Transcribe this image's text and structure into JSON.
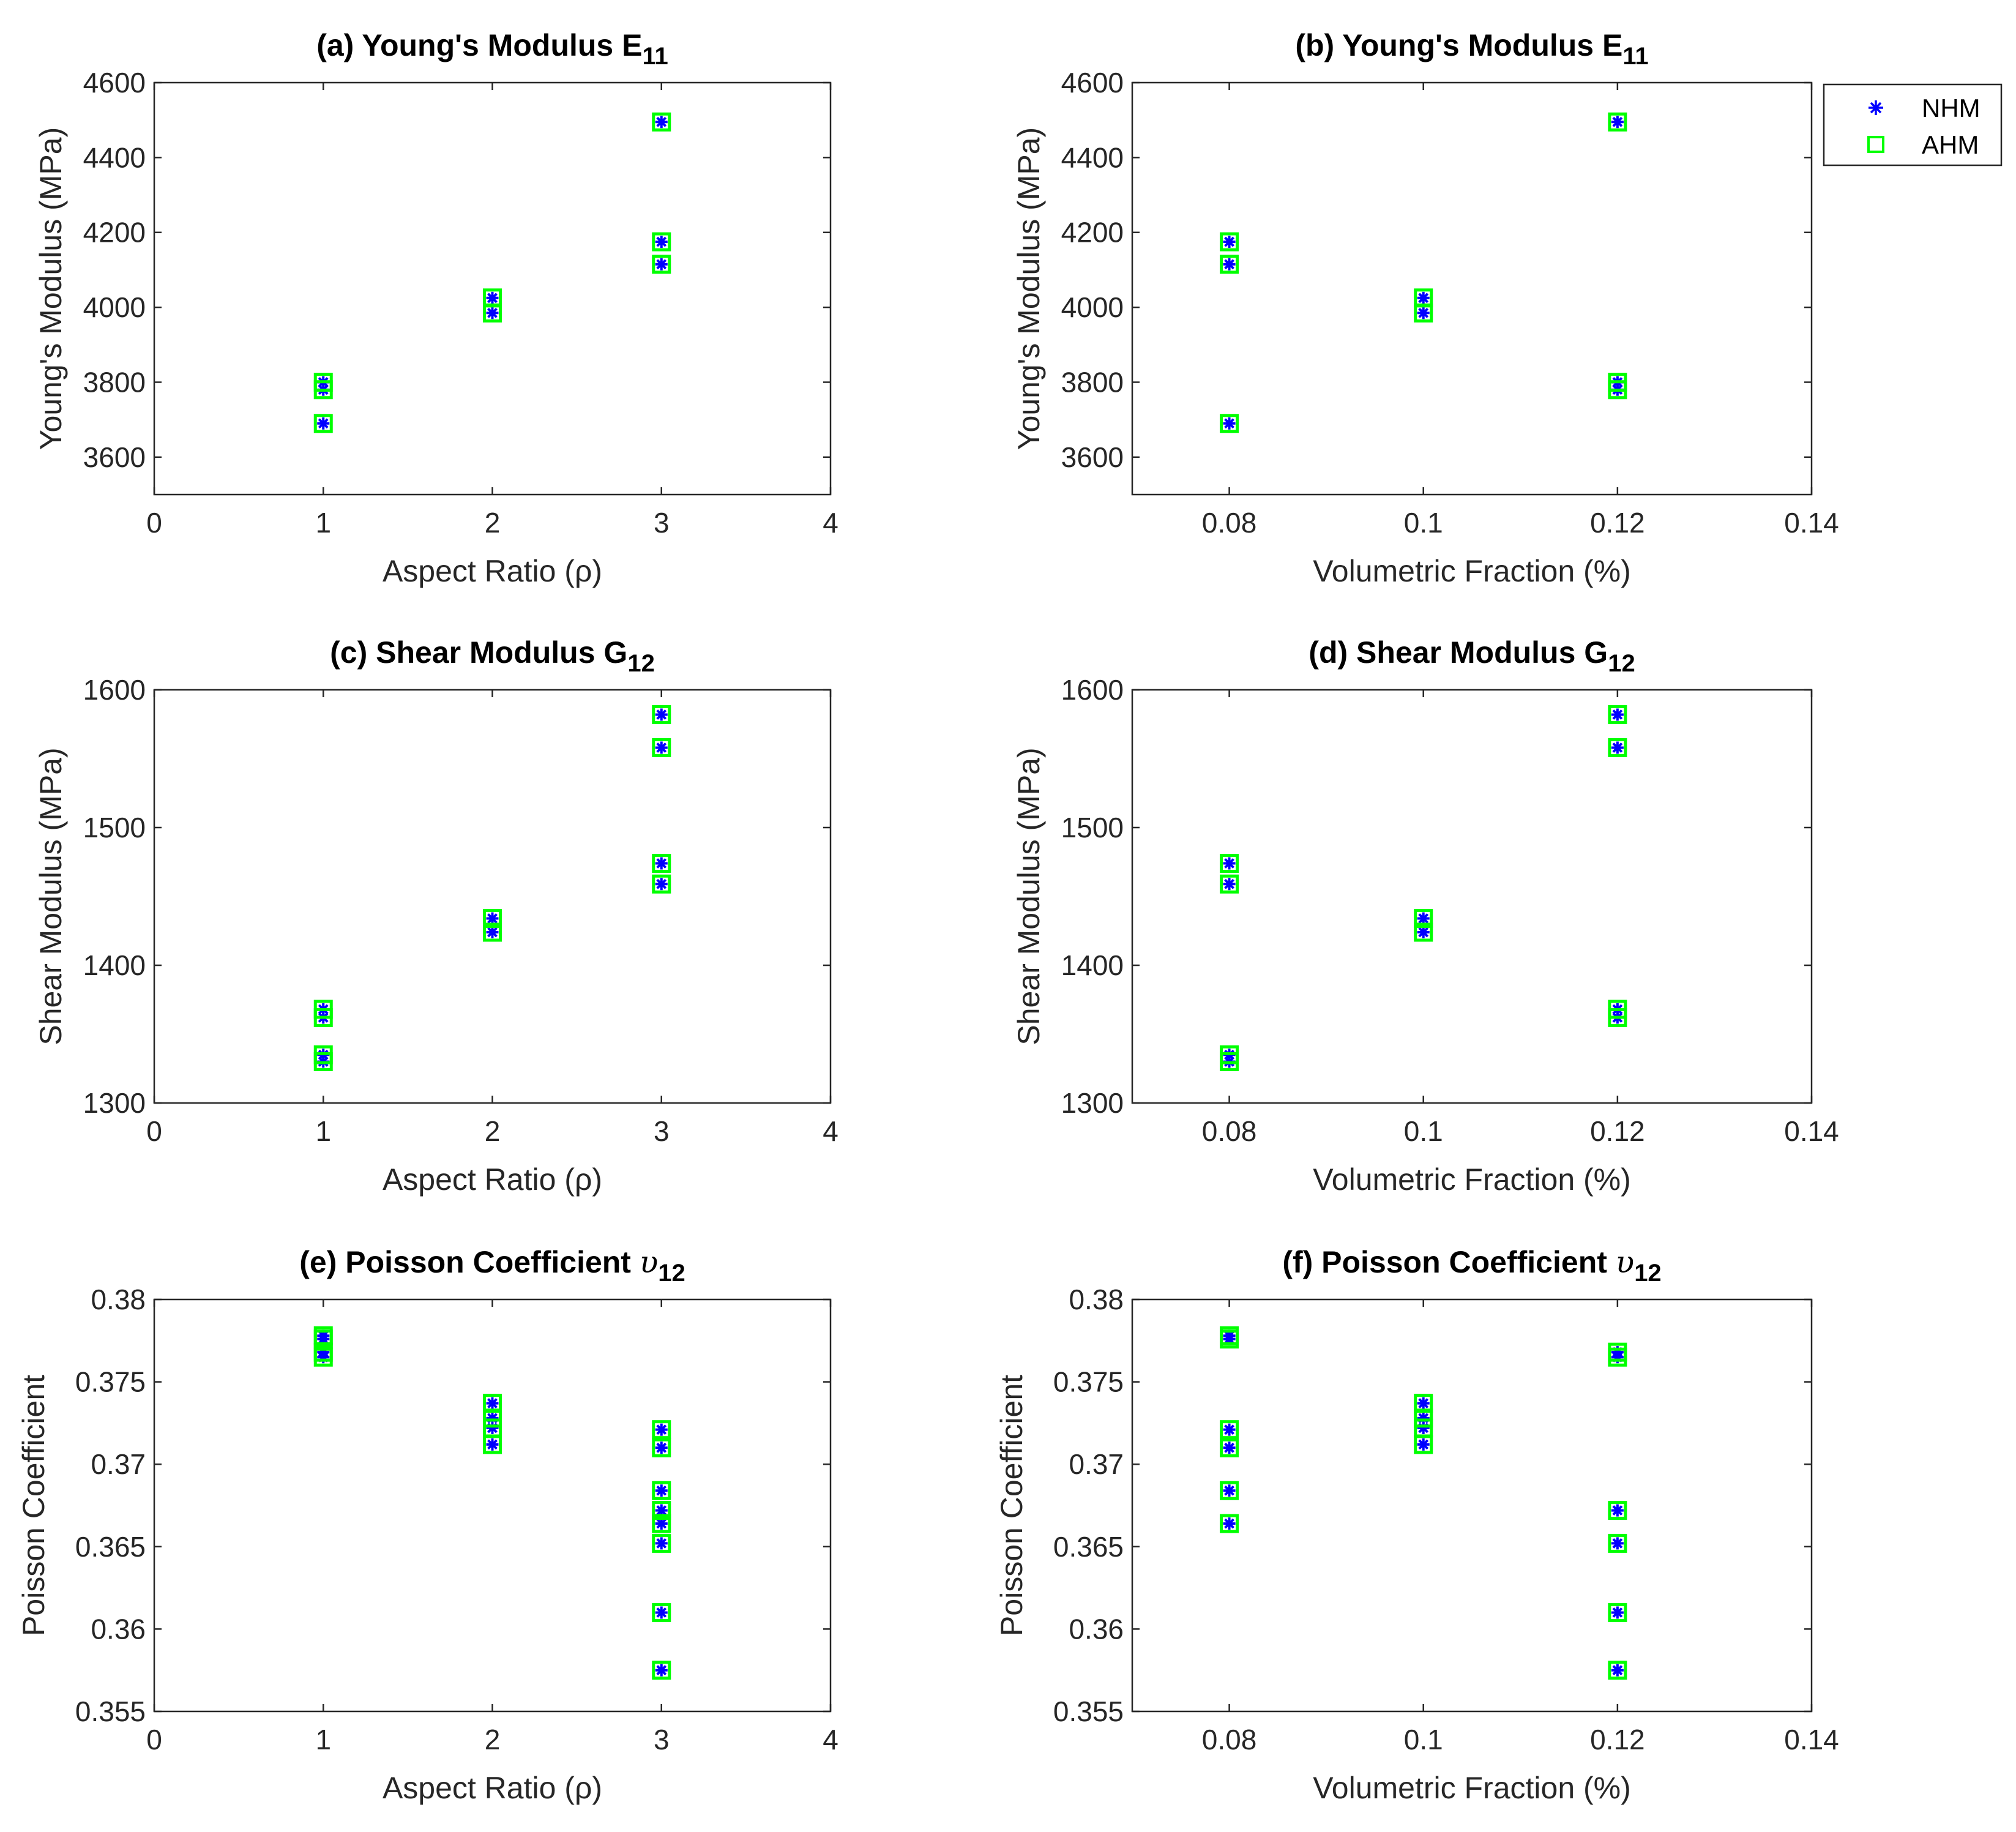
{
  "colors": {
    "nhm": "#0000ff",
    "ahm": "#00ff00",
    "axis": "#262626",
    "background": "#ffffff"
  },
  "legend": {
    "entries": [
      {
        "label": "NHM",
        "marker": "asterisk",
        "color": "#0000ff"
      },
      {
        "label": "AHM",
        "marker": "square",
        "color": "#00ff00"
      }
    ],
    "location": "top-right outside"
  },
  "chart_data": [
    {
      "panel": "a",
      "type": "scatter",
      "title_prefix": "(a)",
      "title_main": "Young's Modulus E",
      "title_sub": "11",
      "xlabel": "Aspect Ratio (ρ)",
      "ylabel": "Young's Modulus (MPa)",
      "xlim": [
        0,
        4
      ],
      "ylim": [
        3500,
        4600
      ],
      "xticks": [
        0,
        1,
        2,
        3,
        4
      ],
      "xtick_labels": [
        "0",
        "1",
        "2",
        "3",
        "4"
      ],
      "yticks": [
        3600,
        3800,
        4000,
        4200,
        4400,
        4600
      ],
      "ytick_labels": [
        "3600",
        "3800",
        "4000",
        "4200",
        "4400",
        "4600"
      ],
      "series": [
        {
          "name": "NHM",
          "points": [
            [
              1,
              3690
            ],
            [
              1,
              3780
            ],
            [
              1,
              3800
            ],
            [
              2,
              3985
            ],
            [
              2,
              4025
            ],
            [
              3,
              4115
            ],
            [
              3,
              4175
            ],
            [
              3,
              4495
            ]
          ]
        },
        {
          "name": "AHM",
          "points": [
            [
              1,
              3690
            ],
            [
              1,
              3780
            ],
            [
              1,
              3800
            ],
            [
              2,
              3985
            ],
            [
              2,
              4025
            ],
            [
              3,
              4115
            ],
            [
              3,
              4175
            ],
            [
              3,
              4495
            ]
          ]
        }
      ]
    },
    {
      "panel": "b",
      "type": "scatter",
      "title_prefix": "(b)",
      "title_main": "Young's Modulus E",
      "title_sub": "11",
      "xlabel": "Volumetric Fraction (%)",
      "ylabel": "Young's Modulus (MPa)",
      "xlim": [
        0.07,
        0.14
      ],
      "ylim": [
        3500,
        4600
      ],
      "xticks": [
        0.08,
        0.1,
        0.12,
        0.14
      ],
      "xtick_labels": [
        "0.08",
        "0.1",
        "0.12",
        "0.14"
      ],
      "yticks": [
        3600,
        3800,
        4000,
        4200,
        4400,
        4600
      ],
      "ytick_labels": [
        "3600",
        "3800",
        "4000",
        "4200",
        "4400",
        "4600"
      ],
      "series": [
        {
          "name": "NHM",
          "points": [
            [
              0.08,
              3690
            ],
            [
              0.08,
              4115
            ],
            [
              0.08,
              4175
            ],
            [
              0.1,
              3985
            ],
            [
              0.1,
              4025
            ],
            [
              0.12,
              3780
            ],
            [
              0.12,
              3800
            ],
            [
              0.12,
              4495
            ]
          ]
        },
        {
          "name": "AHM",
          "points": [
            [
              0.08,
              3690
            ],
            [
              0.08,
              4115
            ],
            [
              0.08,
              4175
            ],
            [
              0.1,
              3985
            ],
            [
              0.1,
              4025
            ],
            [
              0.12,
              3780
            ],
            [
              0.12,
              3800
            ],
            [
              0.12,
              4495
            ]
          ]
        }
      ]
    },
    {
      "panel": "c",
      "type": "scatter",
      "title_prefix": "(c)",
      "title_main": "Shear Modulus G",
      "title_sub": "12",
      "xlabel": "Aspect Ratio (ρ)",
      "ylabel": "Shear Modulus (MPa)",
      "xlim": [
        0,
        4
      ],
      "ylim": [
        1300,
        1600
      ],
      "xticks": [
        0,
        1,
        2,
        3,
        4
      ],
      "xtick_labels": [
        "0",
        "1",
        "2",
        "3",
        "4"
      ],
      "yticks": [
        1300,
        1400,
        1500,
        1600
      ],
      "ytick_labels": [
        "1300",
        "1400",
        "1500",
        "1600"
      ],
      "series": [
        {
          "name": "NHM",
          "points": [
            [
              1,
              1330
            ],
            [
              1,
              1335
            ],
            [
              1,
              1362
            ],
            [
              1,
              1368
            ],
            [
              2,
              1424
            ],
            [
              2,
              1434
            ],
            [
              3,
              1459
            ],
            [
              3,
              1474
            ],
            [
              3,
              1558
            ],
            [
              3,
              1582
            ]
          ]
        },
        {
          "name": "AHM",
          "points": [
            [
              1,
              1330
            ],
            [
              1,
              1335
            ],
            [
              1,
              1362
            ],
            [
              1,
              1368
            ],
            [
              2,
              1424
            ],
            [
              2,
              1434
            ],
            [
              3,
              1459
            ],
            [
              3,
              1474
            ],
            [
              3,
              1558
            ],
            [
              3,
              1582
            ]
          ]
        }
      ]
    },
    {
      "panel": "d",
      "type": "scatter",
      "title_prefix": "(d)",
      "title_main": "Shear Modulus G",
      "title_sub": "12",
      "xlabel": "Volumetric Fraction (%)",
      "ylabel": "Shear Modulus (MPa)",
      "xlim": [
        0.07,
        0.14
      ],
      "ylim": [
        1300,
        1600
      ],
      "xticks": [
        0.08,
        0.1,
        0.12,
        0.14
      ],
      "xtick_labels": [
        "0.08",
        "0.1",
        "0.12",
        "0.14"
      ],
      "yticks": [
        1300,
        1400,
        1500,
        1600
      ],
      "ytick_labels": [
        "1300",
        "1400",
        "1500",
        "1600"
      ],
      "series": [
        {
          "name": "NHM",
          "points": [
            [
              0.08,
              1330
            ],
            [
              0.08,
              1335
            ],
            [
              0.08,
              1459
            ],
            [
              0.08,
              1474
            ],
            [
              0.1,
              1424
            ],
            [
              0.1,
              1434
            ],
            [
              0.12,
              1362
            ],
            [
              0.12,
              1368
            ],
            [
              0.12,
              1558
            ],
            [
              0.12,
              1582
            ]
          ]
        },
        {
          "name": "AHM",
          "points": [
            [
              0.08,
              1330
            ],
            [
              0.08,
              1335
            ],
            [
              0.08,
              1459
            ],
            [
              0.08,
              1474
            ],
            [
              0.1,
              1424
            ],
            [
              0.1,
              1434
            ],
            [
              0.12,
              1362
            ],
            [
              0.12,
              1368
            ],
            [
              0.12,
              1558
            ],
            [
              0.12,
              1582
            ]
          ]
        }
      ]
    },
    {
      "panel": "e",
      "type": "scatter",
      "title_prefix": "(e)",
      "title_main": "Poisson Coefficient ",
      "title_symbol": "υ",
      "title_sub": "12",
      "xlabel": "Aspect Ratio (ρ)",
      "ylabel": "Poisson Coefficient",
      "xlim": [
        0,
        4
      ],
      "ylim": [
        0.355,
        0.38
      ],
      "xticks": [
        0,
        1,
        2,
        3,
        4
      ],
      "xtick_labels": [
        "0",
        "1",
        "2",
        "3",
        "4"
      ],
      "yticks": [
        0.355,
        0.36,
        0.365,
        0.37,
        0.375,
        0.38
      ],
      "ytick_labels": [
        "0.355",
        "0.36",
        "0.365",
        "0.37",
        "0.375",
        "0.38"
      ],
      "series": [
        {
          "name": "NHM",
          "points": [
            [
              1,
              0.3765
            ],
            [
              1,
              0.3768
            ],
            [
              1,
              0.3776
            ],
            [
              1,
              0.3778
            ],
            [
              2,
              0.3712
            ],
            [
              2,
              0.3722
            ],
            [
              2,
              0.3728
            ],
            [
              2,
              0.3737
            ],
            [
              3,
              0.3575
            ],
            [
              3,
              0.361
            ],
            [
              3,
              0.3652
            ],
            [
              3,
              0.3664
            ],
            [
              3,
              0.3672
            ],
            [
              3,
              0.3684
            ],
            [
              3,
              0.371
            ],
            [
              3,
              0.3721
            ]
          ]
        },
        {
          "name": "AHM",
          "points": [
            [
              1,
              0.3765
            ],
            [
              1,
              0.3768
            ],
            [
              1,
              0.3776
            ],
            [
              1,
              0.3778
            ],
            [
              2,
              0.3712
            ],
            [
              2,
              0.3722
            ],
            [
              2,
              0.3728
            ],
            [
              2,
              0.3737
            ],
            [
              3,
              0.3575
            ],
            [
              3,
              0.361
            ],
            [
              3,
              0.3652
            ],
            [
              3,
              0.3664
            ],
            [
              3,
              0.3672
            ],
            [
              3,
              0.3684
            ],
            [
              3,
              0.371
            ],
            [
              3,
              0.3721
            ]
          ]
        }
      ]
    },
    {
      "panel": "f",
      "type": "scatter",
      "title_prefix": "(f)",
      "title_main": "Poisson Coefficient ",
      "title_symbol": "υ",
      "title_sub": "12",
      "xlabel": "Volumetric Fraction (%)",
      "ylabel": "Poisson Coefficient",
      "xlim": [
        0.07,
        0.14
      ],
      "ylim": [
        0.355,
        0.38
      ],
      "xticks": [
        0.08,
        0.1,
        0.12,
        0.14
      ],
      "xtick_labels": [
        "0.08",
        "0.1",
        "0.12",
        "0.14"
      ],
      "yticks": [
        0.355,
        0.36,
        0.365,
        0.37,
        0.375,
        0.38
      ],
      "ytick_labels": [
        "0.355",
        "0.36",
        "0.365",
        "0.37",
        "0.375",
        "0.38"
      ],
      "series": [
        {
          "name": "NHM",
          "points": [
            [
              0.08,
              0.3664
            ],
            [
              0.08,
              0.3684
            ],
            [
              0.08,
              0.371
            ],
            [
              0.08,
              0.3721
            ],
            [
              0.08,
              0.3776
            ],
            [
              0.08,
              0.3778
            ],
            [
              0.1,
              0.3712
            ],
            [
              0.1,
              0.3722
            ],
            [
              0.1,
              0.3728
            ],
            [
              0.1,
              0.3737
            ],
            [
              0.12,
              0.3575
            ],
            [
              0.12,
              0.361
            ],
            [
              0.12,
              0.3652
            ],
            [
              0.12,
              0.3672
            ],
            [
              0.12,
              0.3765
            ],
            [
              0.12,
              0.3768
            ]
          ]
        },
        {
          "name": "AHM",
          "points": [
            [
              0.08,
              0.3664
            ],
            [
              0.08,
              0.3684
            ],
            [
              0.08,
              0.371
            ],
            [
              0.08,
              0.3721
            ],
            [
              0.08,
              0.3776
            ],
            [
              0.08,
              0.3778
            ],
            [
              0.1,
              0.3712
            ],
            [
              0.1,
              0.3722
            ],
            [
              0.1,
              0.3728
            ],
            [
              0.1,
              0.3737
            ],
            [
              0.12,
              0.3575
            ],
            [
              0.12,
              0.361
            ],
            [
              0.12,
              0.3652
            ],
            [
              0.12,
              0.3672
            ],
            [
              0.12,
              0.3765
            ],
            [
              0.12,
              0.3768
            ]
          ]
        }
      ]
    }
  ]
}
